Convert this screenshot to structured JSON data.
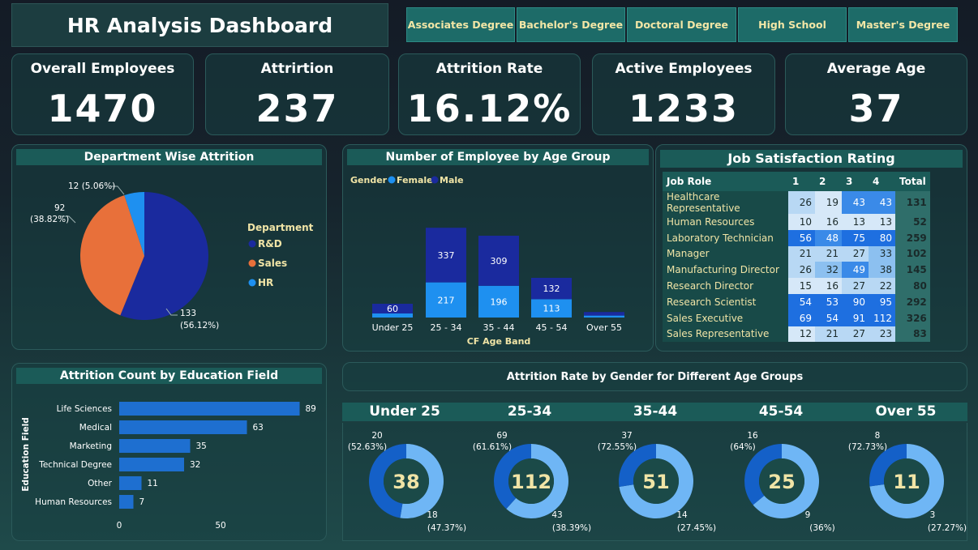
{
  "header": {
    "title": "HR Analysis Dashboard"
  },
  "filters": [
    "Associates Degree",
    "Bachelor's Degree",
    "Doctoral Degree",
    "High School",
    "Master's Degree"
  ],
  "kpis": [
    {
      "label": "Overall Employees",
      "value": "1470"
    },
    {
      "label": "Attrirtion",
      "value": "237"
    },
    {
      "label": "Attrition Rate",
      "value": "16.12%"
    },
    {
      "label": "Active Employees",
      "value": "1233"
    },
    {
      "label": "Average Age",
      "value": "37"
    }
  ],
  "dept_chart": {
    "title": "Department Wise Attrition",
    "legend_title": "Department",
    "legend": [
      "R&D",
      "Sales",
      "HR"
    ],
    "labels": [
      "133",
      "(56.12%)",
      "92",
      "(38.82%)",
      "12 (5.06%)"
    ]
  },
  "age_chart": {
    "title": "Number of Employee by Age Group",
    "legend_title": "Gender",
    "legend": [
      "Female",
      "Male"
    ],
    "xlabel": "CF Age Band",
    "female_labels": [
      "",
      "217",
      "196",
      "113",
      ""
    ],
    "male_labels": [
      "60",
      "337",
      "309",
      "132",
      ""
    ]
  },
  "jobsat": {
    "title": "Job Satisfaction Rating",
    "headers": [
      "Job Role",
      "1",
      "2",
      "3",
      "4",
      "Total"
    ],
    "rows": [
      [
        "Healthcare Representative",
        "26",
        "19",
        "43",
        "43",
        "131"
      ],
      [
        "Human Resources",
        "10",
        "16",
        "13",
        "13",
        "52"
      ],
      [
        "Laboratory Technician",
        "56",
        "48",
        "75",
        "80",
        "259"
      ],
      [
        "Manager",
        "21",
        "21",
        "27",
        "33",
        "102"
      ],
      [
        "Manufacturing Director",
        "26",
        "32",
        "49",
        "38",
        "145"
      ],
      [
        "Research Director",
        "15",
        "16",
        "27",
        "22",
        "80"
      ],
      [
        "Research Scientist",
        "54",
        "53",
        "90",
        "95",
        "292"
      ],
      [
        "Sales Executive",
        "69",
        "54",
        "91",
        "112",
        "326"
      ],
      [
        "Sales Representative",
        "12",
        "21",
        "27",
        "23",
        "83"
      ]
    ]
  },
  "edu_chart": {
    "title": "Attrition Count by Education Field",
    "ylabel": "Education Field",
    "ticks": [
      "0",
      "50"
    ]
  },
  "gender_section": {
    "title": "Attrition Rate by Gender for Different Age Groups",
    "groups": [
      {
        "label": "Under 25",
        "total": "38",
        "top": "20",
        "top_pct": "(52.63%)",
        "bottom": "18",
        "bottom_pct": "(47.37%)"
      },
      {
        "label": "25-34",
        "total": "112",
        "top": "69",
        "top_pct": "(61.61%)",
        "bottom": "43",
        "bottom_pct": "(38.39%)"
      },
      {
        "label": "35-44",
        "total": "51",
        "top": "37",
        "top_pct": "(72.55%)",
        "bottom": "14",
        "bottom_pct": "(27.45%)"
      },
      {
        "label": "45-54",
        "total": "25",
        "top": "16",
        "top_pct": "(64%)",
        "bottom": "9",
        "bottom_pct": "(36%)"
      },
      {
        "label": "Over 55",
        "total": "11",
        "top": "8",
        "top_pct": "(72.73%)",
        "bottom": "3",
        "bottom_pct": "(27.27%)"
      }
    ]
  },
  "colors": {
    "dark_blue": "#1a2a9e",
    "orange": "#e8703a",
    "light_blue": "#1e90f0",
    "bar_blue": "#1e6fd0",
    "donut_light": "#6fb6f5",
    "donut_dark": "#1460c8",
    "accent_text": "#f0e4a6"
  },
  "chart_data": [
    {
      "type": "pie",
      "title": "Department Wise Attrition",
      "categories": [
        "R&D",
        "Sales",
        "HR"
      ],
      "values": [
        133,
        92,
        12
      ],
      "percentages": [
        56.12,
        38.82,
        5.06
      ],
      "legend": "right"
    },
    {
      "type": "bar",
      "title": "Number of Employee by Age Group",
      "stacked": true,
      "categories": [
        "Under 25",
        "25 - 34",
        "35 - 44",
        "45 - 54",
        "Over 55"
      ],
      "series": [
        {
          "name": "Female",
          "values": [
            25,
            217,
            196,
            113,
            12
          ]
        },
        {
          "name": "Male",
          "values": [
            60,
            337,
            309,
            132,
            22
          ]
        }
      ],
      "xlabel": "CF Age Band",
      "legend": "top-left"
    },
    {
      "type": "bar",
      "orientation": "horizontal",
      "title": "Attrition Count by Education Field",
      "categories": [
        "Life Sciences",
        "Medical",
        "Marketing",
        "Technical Degree",
        "Other",
        "Human Resources"
      ],
      "values": [
        89,
        63,
        35,
        32,
        11,
        7
      ],
      "ylabel": "Education Field",
      "xlim": [
        0,
        95
      ]
    },
    {
      "type": "table",
      "title": "Job Satisfaction Rating",
      "columns": [
        "Job Role",
        "1",
        "2",
        "3",
        "4",
        "Total"
      ]
    },
    {
      "type": "pie",
      "donut": true,
      "title": "Attrition Rate by Gender for Different Age Groups",
      "groups": [
        "Under 25",
        "25-34",
        "35-44",
        "45-54",
        "Over 55"
      ],
      "series": [
        {
          "values": [
            20,
            69,
            37,
            16,
            8
          ]
        },
        {
          "values": [
            18,
            43,
            14,
            9,
            3
          ]
        }
      ],
      "totals": [
        38,
        112,
        51,
        25,
        11
      ]
    }
  ]
}
